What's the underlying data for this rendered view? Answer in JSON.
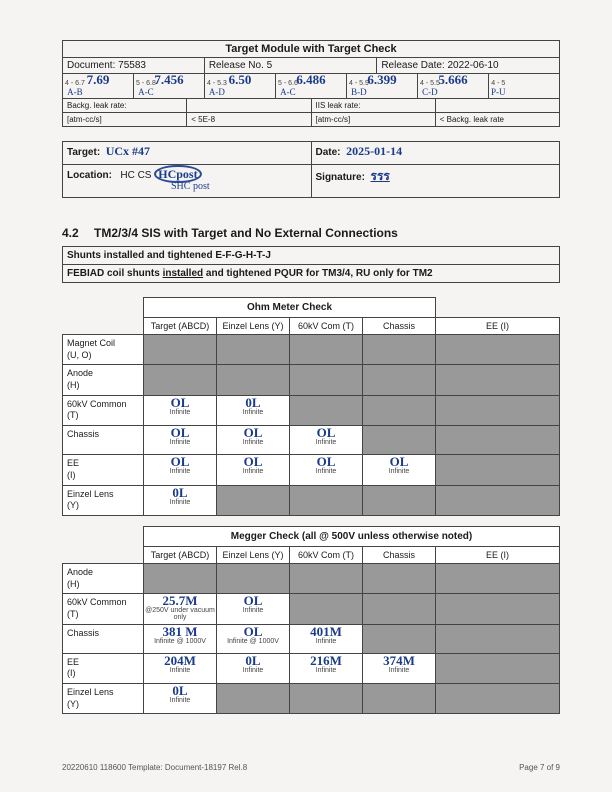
{
  "header": {
    "main_title": "Target Module with Target Check",
    "doc_label": "Document: 75583",
    "rel_label": "Release No. 5",
    "date_label": "Release Date: 2022-06-10",
    "nums_hw": [
      "7.69",
      "7.456",
      "6.50",
      "6.486",
      "6.399",
      "5.666",
      ""
    ],
    "nums_range": [
      "4 - 6.7",
      "5 - 6.8",
      "4 - 5.3",
      "5 - 6.6",
      "4 - 5.9",
      "4 - 5.5",
      "4 - 5"
    ],
    "nums_code": [
      "A-B",
      "A-C",
      "A-D",
      "A-C",
      "B-D",
      "C-D",
      "P-U"
    ],
    "leak1_l": "Backg. leak rate:",
    "leak1_r": "IIS leak rate:",
    "leak2": [
      "[atm-cc/s]",
      "< 5E-8",
      "[atm-cc/s]",
      "< Backg. leak rate"
    ]
  },
  "tgt": {
    "t_lbl": "Target:",
    "t_hw": "UCx #47",
    "d_lbl": "Date:",
    "d_hw": "2025-01-14",
    "l_lbl": "Location:",
    "l_vals": "HC   CS",
    "l_circled": "HCpost",
    "l_below": "SHC post",
    "s_lbl": "Signature:",
    "s_hw": "รรร"
  },
  "sec": {
    "num": "4.2",
    "title": "TM2/3/4 SIS with Target and No External Connections",
    "sh1": "Shunts installed and tightened E-F-G-H-T-J",
    "sh2": "FEBIAD coil shunts installed and tightened PQUR for TM3/4, RU only for TM2"
  },
  "ohm": {
    "title": "Ohm Meter Check",
    "cols": [
      "Target (ABCD)",
      "Einzel Lens (Y)",
      "60kV Com (T)",
      "Chassis",
      "EE (I)"
    ],
    "rows": [
      {
        "label": "Magnet Coil (U, O)",
        "cells": [
          "grey",
          "grey",
          "grey",
          "grey",
          "grey"
        ]
      },
      {
        "label": "Anode (H)",
        "cells": [
          "grey",
          "grey",
          "grey",
          "grey",
          "grey"
        ]
      },
      {
        "label": "60kV Common (T)",
        "cells": [
          {
            "hw": "OL",
            "sm": "Infinite"
          },
          {
            "hw": "0L",
            "sm": "Infinite"
          },
          "grey",
          "grey",
          "grey"
        ]
      },
      {
        "label": "Chassis",
        "cells": [
          {
            "hw": "OL",
            "sm": "Infinite"
          },
          {
            "hw": "OL",
            "sm": "Infinite"
          },
          {
            "hw": "OL",
            "sm": "Infinite"
          },
          "grey",
          "grey"
        ]
      },
      {
        "label": "EE (I)",
        "cells": [
          {
            "hw": "OL",
            "sm": "Infinite"
          },
          {
            "hw": "OL",
            "sm": "Infinite"
          },
          {
            "hw": "OL",
            "sm": "Infinite"
          },
          {
            "hw": "OL",
            "sm": "Infinite"
          },
          "grey"
        ]
      },
      {
        "label": "Einzel Lens (Y)",
        "cells": [
          {
            "hw": "0L",
            "sm": "Infinite"
          },
          "grey",
          "grey",
          "grey",
          "grey"
        ]
      }
    ]
  },
  "meg": {
    "title": "Megger Check (all @ 500V unless otherwise noted)",
    "cols": [
      "Target (ABCD)",
      "Einzel Lens (Y)",
      "60kV Com (T)",
      "Chassis",
      "EE (I)"
    ],
    "rows": [
      {
        "label": "Anode (H)",
        "cells": [
          "grey",
          "grey",
          "grey",
          "grey",
          "grey"
        ]
      },
      {
        "label": "60kV Common (T)",
        "cells": [
          {
            "hw": "25.7M",
            "sm": "@250V under vacuum only"
          },
          {
            "hw": "OL",
            "sm": "Infinite"
          },
          "grey",
          "grey",
          "grey"
        ]
      },
      {
        "label": "Chassis",
        "cells": [
          {
            "hw": "381 M",
            "sm": "Infinite @ 1000V"
          },
          {
            "hw": "OL",
            "sm": "Infinite @ 1000V"
          },
          {
            "hw": "401M",
            "sm": "Infinite"
          },
          "grey",
          "grey"
        ]
      },
      {
        "label": "EE (I)",
        "cells": [
          {
            "hw": "204M",
            "sm": "Infinite"
          },
          {
            "hw": "0L",
            "sm": "Infinite"
          },
          {
            "hw": "216M",
            "sm": "Infinite"
          },
          {
            "hw": "374M",
            "sm": "Infinite"
          },
          "grey"
        ]
      },
      {
        "label": "Einzel Lens (Y)",
        "cells": [
          {
            "hw": "0L",
            "sm": "Infinite"
          },
          "grey",
          "grey",
          "grey",
          "grey"
        ]
      }
    ]
  },
  "footer": {
    "left": "20220610 118600 Template: Document-18197 Rel.8",
    "right": "Page 7 of 9"
  }
}
